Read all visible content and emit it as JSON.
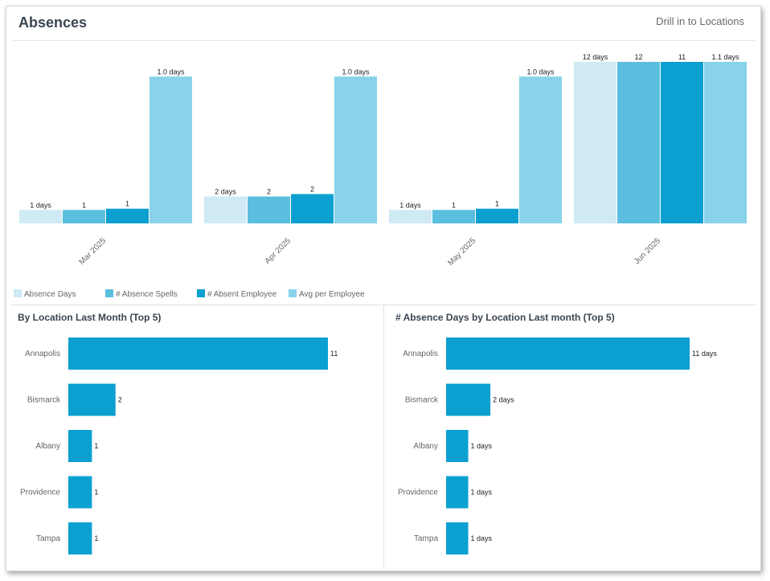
{
  "header": {
    "title": "Absences",
    "drill_link": "Drill in to Locations"
  },
  "colors": {
    "absence_days": "#cfeaf5",
    "absence_spells": "#5bbede",
    "absent_employee": "#0ba0d0",
    "avg_per_employee": "#88d2ea",
    "bar": "#0ba0d0"
  },
  "chart_data": [
    {
      "type": "bar",
      "title": "",
      "categories": [
        "Mar 2025",
        "Apr 2025",
        "May 2025",
        "Jun 2025"
      ],
      "series": [
        {
          "name": "Absence Days",
          "values": [
            1,
            2,
            1,
            12
          ],
          "labels": [
            "1 days",
            "2 days",
            "1 days",
            "12 days"
          ]
        },
        {
          "name": "# Absence Spells",
          "values": [
            1,
            2,
            1,
            12
          ],
          "labels": [
            "1",
            "2",
            "1",
            "12"
          ]
        },
        {
          "name": "# Absent Employee",
          "values": [
            1,
            2,
            1,
            11
          ],
          "labels": [
            "1",
            "2",
            "1",
            "11"
          ]
        },
        {
          "name": "Avg per Employee",
          "values": [
            1.0,
            1.0,
            1.0,
            1.1
          ],
          "labels": [
            "1.0 days",
            "1.0 days",
            "1.0 days",
            "1.1 days"
          ]
        }
      ],
      "legend_position": "bottom-left",
      "grid": false
    },
    {
      "type": "bar",
      "orientation": "horizontal",
      "title": "By Location Last Month (Top 5)",
      "categories": [
        "Annapolis",
        "Bismarck",
        "Albany",
        "Providence",
        "Tampa"
      ],
      "values": [
        11,
        2,
        1,
        1,
        1
      ],
      "labels": [
        "11",
        "2",
        "1",
        "1",
        "1"
      ],
      "grid": false
    },
    {
      "type": "bar",
      "orientation": "horizontal",
      "title": "# Absence Days by Location Last month (Top 5)",
      "categories": [
        "Annapolis",
        "Bismarck",
        "Albany",
        "Providence",
        "Tampa"
      ],
      "values": [
        11,
        2,
        1,
        1,
        1
      ],
      "labels": [
        "11 days",
        "2 days",
        "1 days",
        "1 days",
        "1 days"
      ],
      "grid": false
    }
  ]
}
